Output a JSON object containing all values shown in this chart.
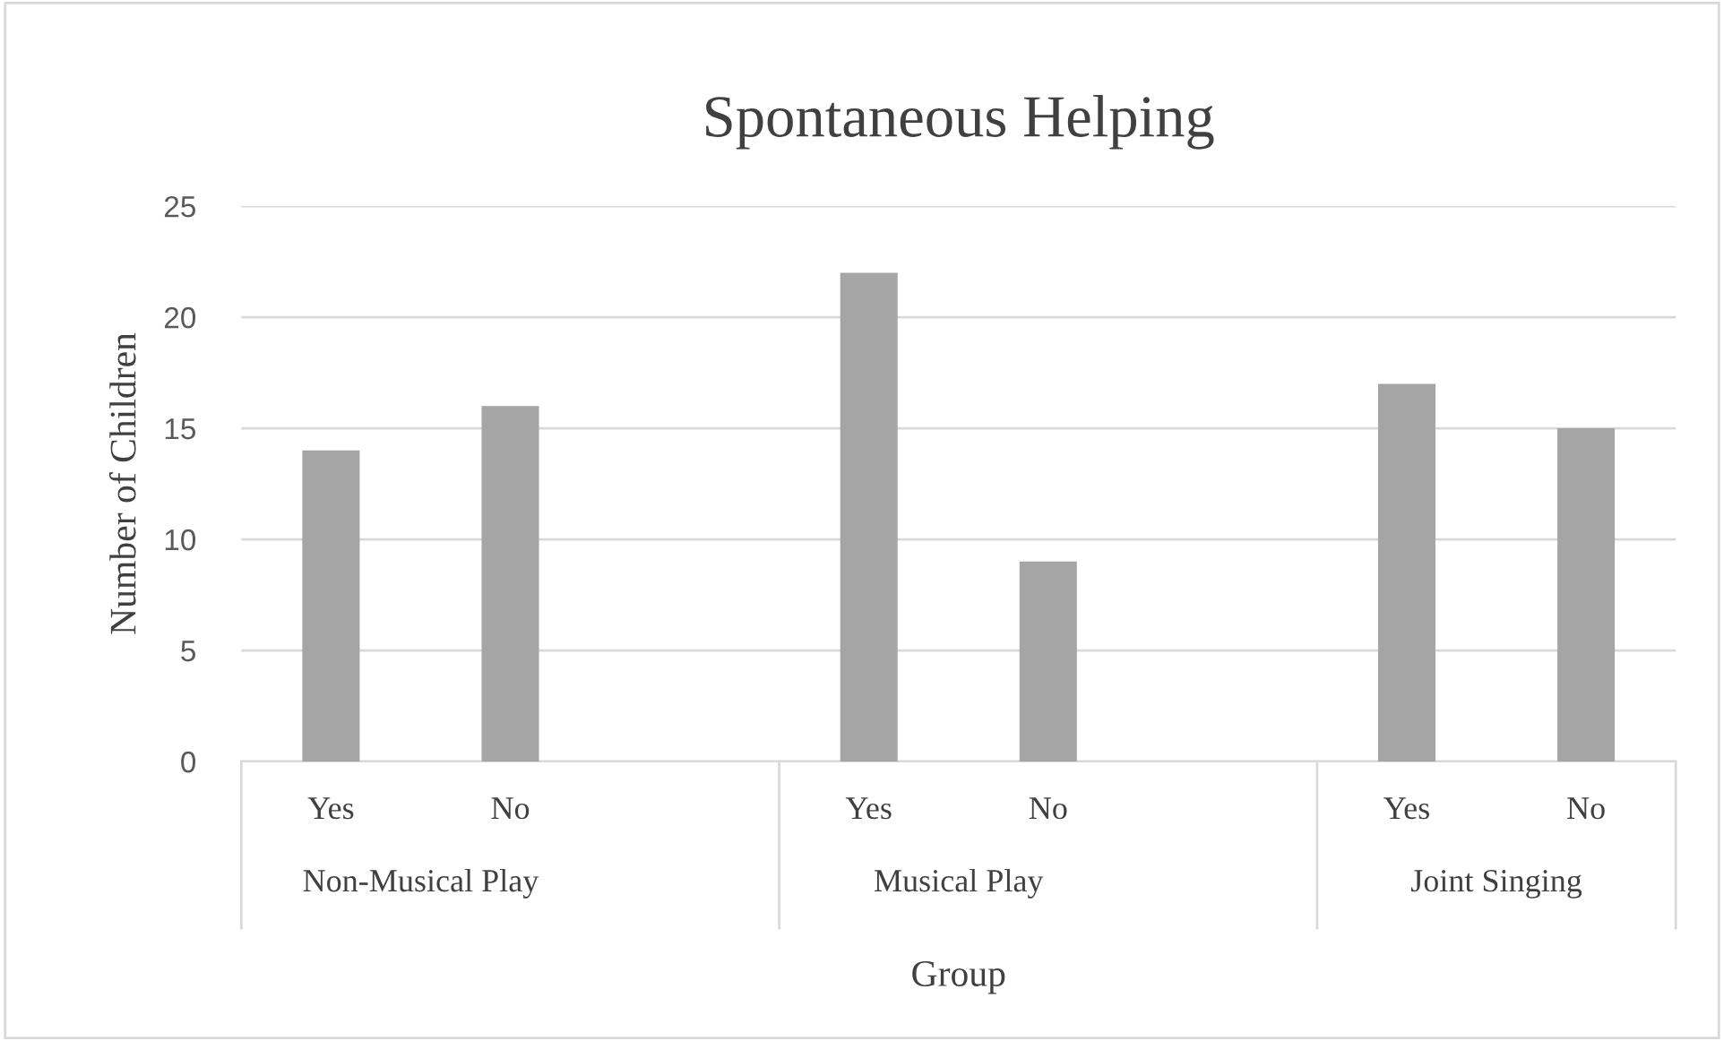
{
  "chart_data": {
    "type": "bar",
    "title": "Spontaneous Helping",
    "xlabel": "Group",
    "ylabel": "Number of Children",
    "categories": [
      "Yes",
      "No",
      null,
      "Yes",
      "No",
      null,
      "Yes",
      "No"
    ],
    "values": [
      14,
      16,
      null,
      22,
      9,
      null,
      17,
      15
    ],
    "color": "#a5a5a5",
    "annotations": [
      "Non-Musical Play",
      "Musical Play",
      "Joint Singing"
    ],
    "ylim": [
      0,
      25
    ],
    "yticks": [
      0,
      5,
      10,
      15,
      20,
      25
    ],
    "grid": "y"
  }
}
